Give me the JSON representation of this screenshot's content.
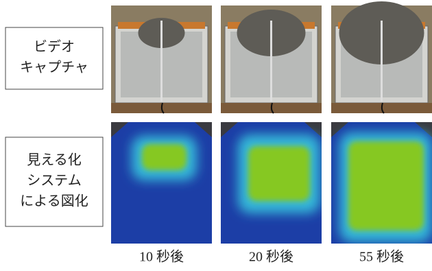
{
  "row_labels": [
    {
      "lines": [
        "ビデオ",
        "キャプチャ"
      ]
    },
    {
      "lines": [
        "見える化",
        "システム",
        "による図化"
      ]
    }
  ],
  "captions": [
    "10 秒後",
    "20 秒後",
    "55 秒後"
  ]
}
